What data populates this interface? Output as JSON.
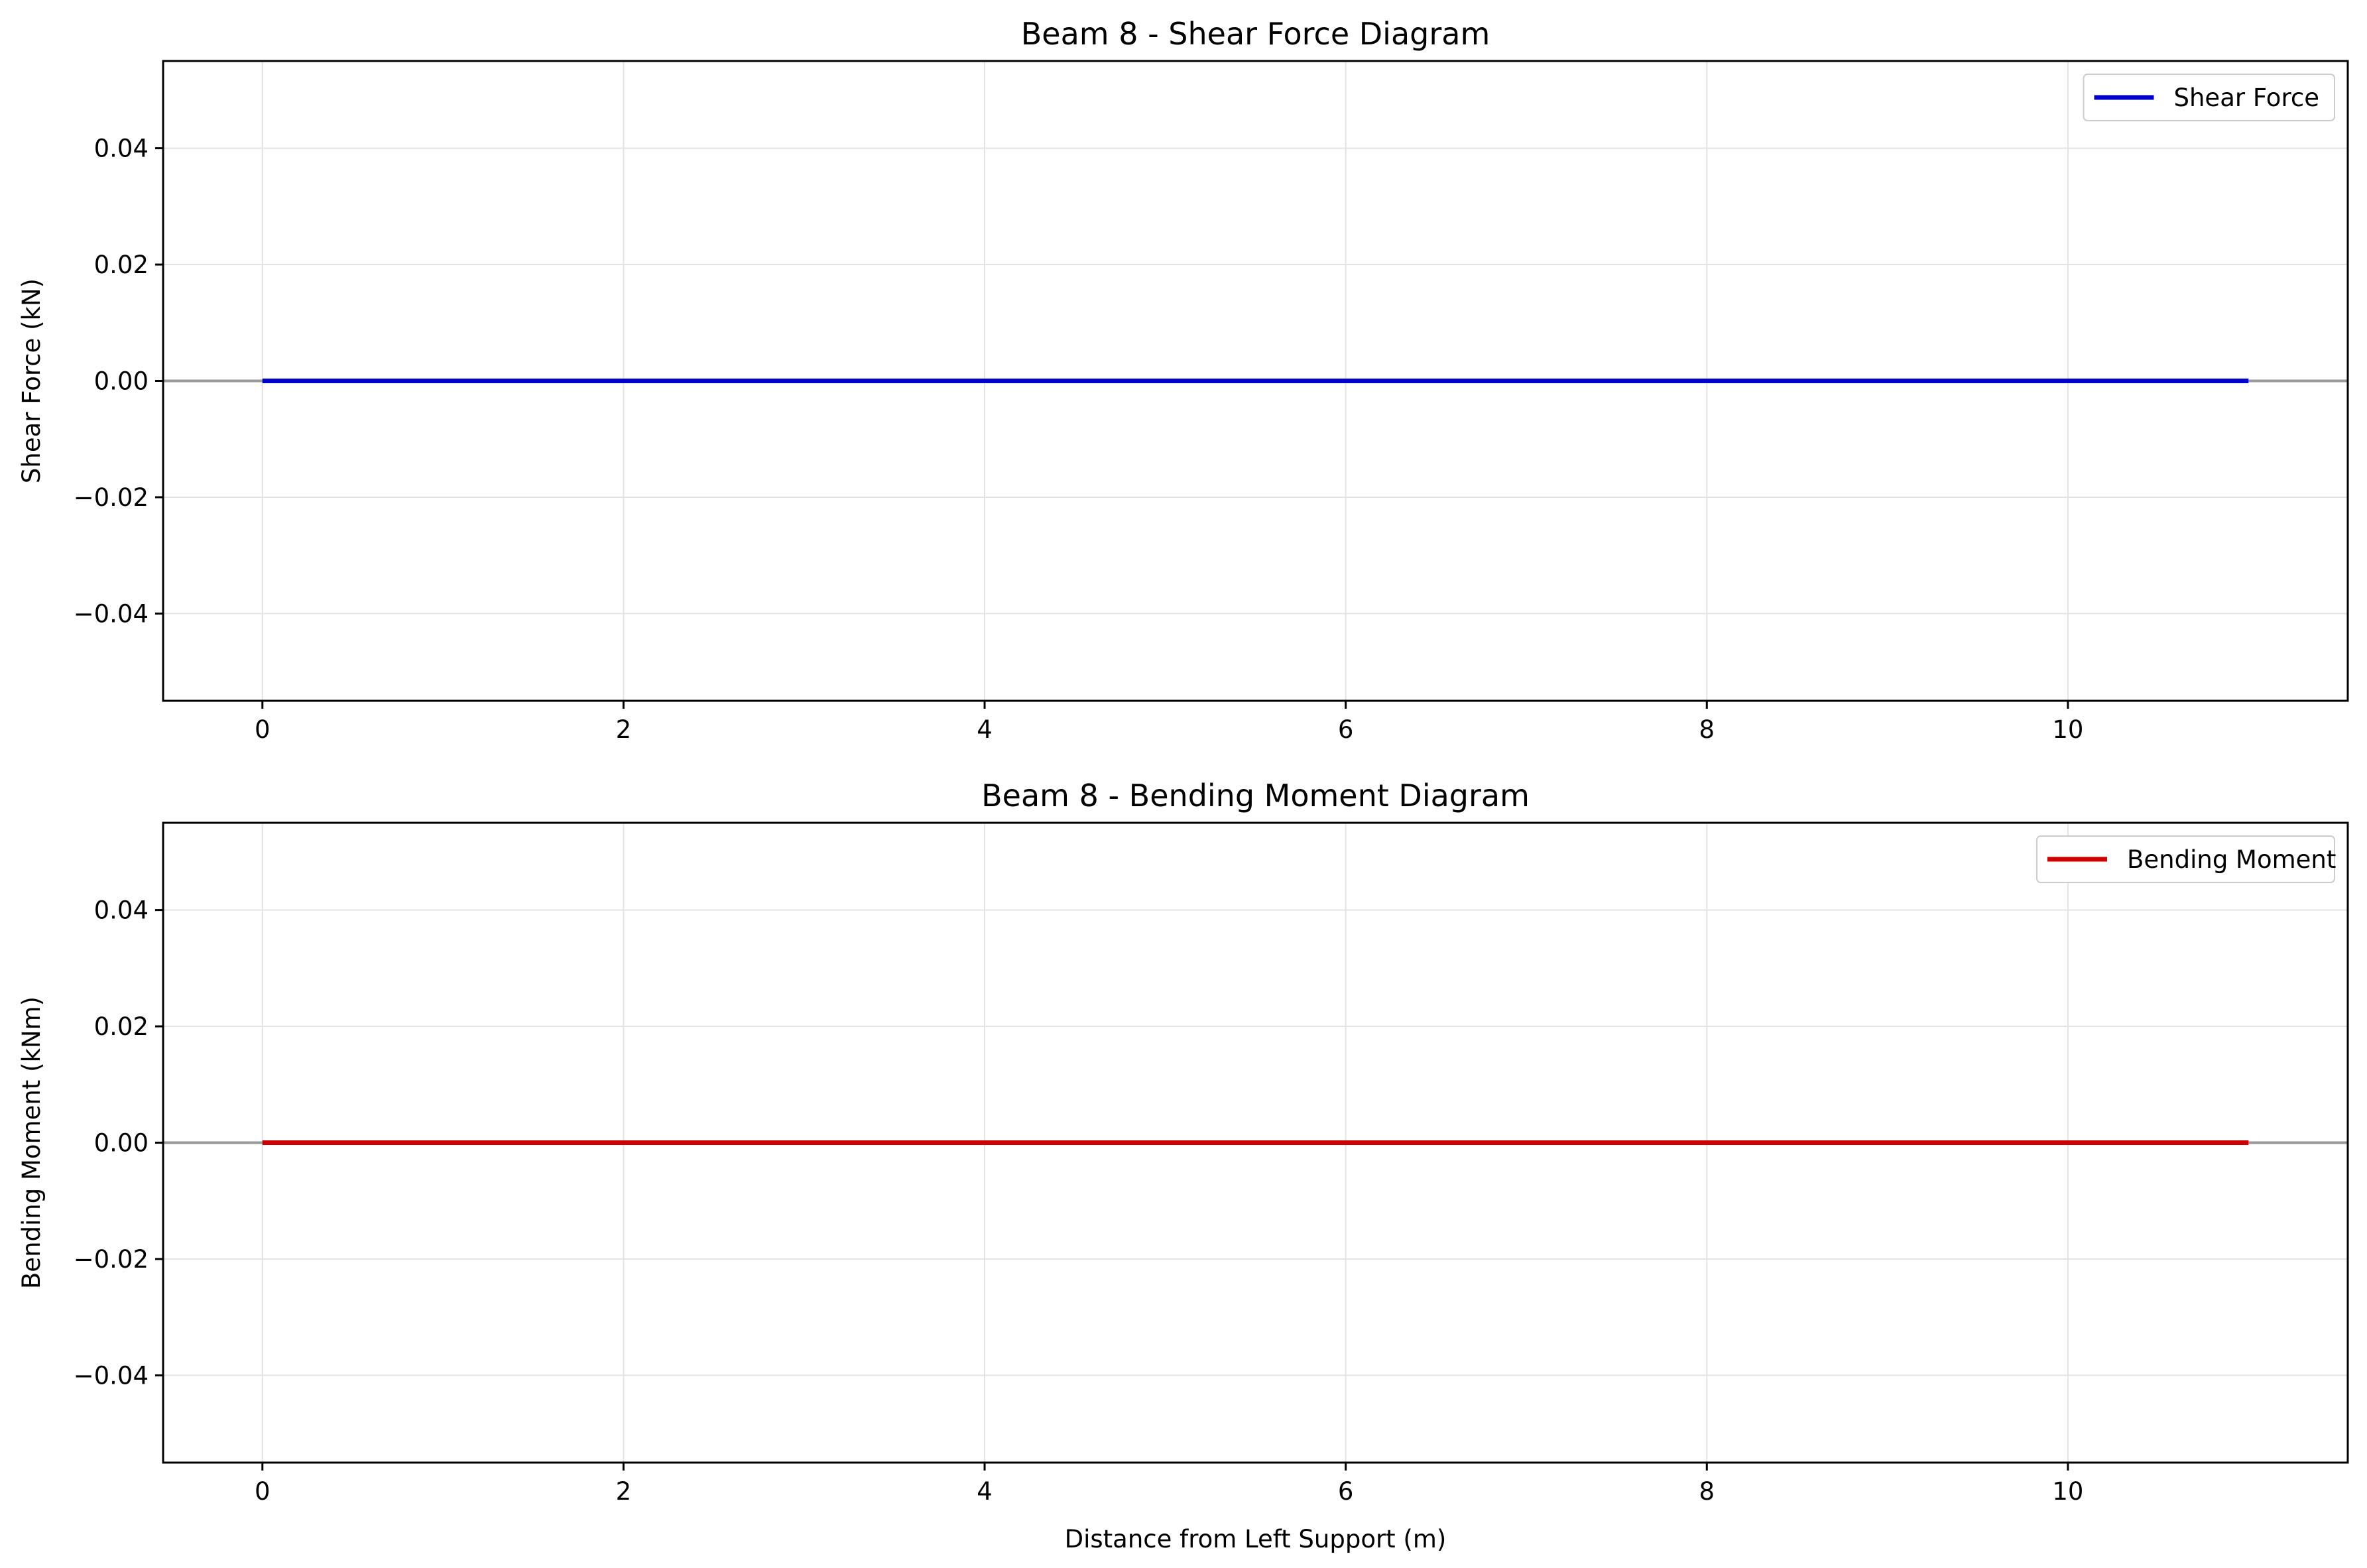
{
  "chart_data": [
    {
      "type": "line",
      "title": "Beam 8 - Shear Force Diagram",
      "xlabel": "",
      "ylabel": "Shear Force (kN)",
      "xlim": [
        -0.55,
        11.55
      ],
      "ylim": [
        -0.055,
        0.055
      ],
      "xticks": [
        0,
        2,
        4,
        6,
        8,
        10
      ],
      "xtick_labels": [
        "0",
        "2",
        "4",
        "6",
        "8",
        "10"
      ],
      "yticks": [
        0.04,
        0.02,
        0.0,
        -0.02,
        -0.04
      ],
      "ytick_labels": [
        "0.04",
        "0.02",
        "0.00",
        "−0.02",
        "−0.04"
      ],
      "grid": true,
      "zero_line": true,
      "legend_position": "top-right",
      "series": [
        {
          "name": "Shear Force",
          "color": "#0000cc",
          "x": [
            0,
            11
          ],
          "y": [
            0,
            0
          ]
        }
      ]
    },
    {
      "type": "line",
      "title": "Beam 8 - Bending Moment Diagram",
      "xlabel": "Distance from Left Support (m)",
      "ylabel": "Bending Moment (kNm)",
      "xlim": [
        -0.55,
        11.55
      ],
      "ylim": [
        -0.055,
        0.055
      ],
      "xticks": [
        0,
        2,
        4,
        6,
        8,
        10
      ],
      "xtick_labels": [
        "0",
        "2",
        "4",
        "6",
        "8",
        "10"
      ],
      "yticks": [
        0.04,
        0.02,
        0.0,
        -0.02,
        -0.04
      ],
      "ytick_labels": [
        "0.04",
        "0.02",
        "0.00",
        "−0.02",
        "−0.04"
      ],
      "grid": true,
      "zero_line": true,
      "legend_position": "top-right",
      "series": [
        {
          "name": "Bending Moment",
          "color": "#cc0000",
          "x": [
            0,
            11
          ],
          "y": [
            0,
            0
          ]
        }
      ]
    }
  ]
}
